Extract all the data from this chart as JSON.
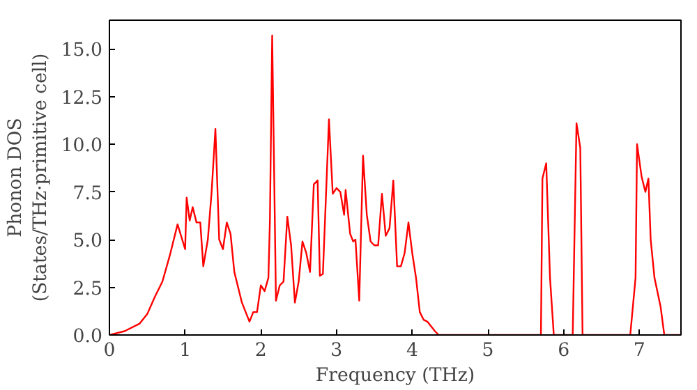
{
  "chart_data": {
    "type": "line",
    "xlabel": "Frequency (THz)",
    "ylabel": "Phonon DOS\n(States/THz·primitive cell)",
    "xlim": [
      0,
      7.55
    ],
    "ylim": [
      0,
      16.5
    ],
    "xticks": [
      0,
      1,
      2,
      3,
      4,
      5,
      6,
      7
    ],
    "yticks": [
      {
        "value": 0,
        "label": "0.0"
      },
      {
        "value": 2.5,
        "label": "2.5"
      },
      {
        "value": 5,
        "label": "5.0"
      },
      {
        "value": 7.5,
        "label": "7.5"
      },
      {
        "value": 10,
        "label": "10.0"
      },
      {
        "value": 12.5,
        "label": "12.5"
      },
      {
        "value": 15,
        "label": "15.0"
      }
    ],
    "grid": false,
    "series": [
      {
        "color": "#ff0000",
        "x": [
          0,
          0.2,
          0.4,
          0.5,
          0.6,
          0.7,
          0.8,
          0.9,
          1.0,
          1.02,
          1.06,
          1.1,
          1.15,
          1.2,
          1.24,
          1.3,
          1.35,
          1.4,
          1.45,
          1.5,
          1.55,
          1.6,
          1.65,
          1.75,
          1.85,
          1.9,
          1.95,
          2.0,
          2.05,
          2.1,
          2.12,
          2.15,
          2.2,
          2.25,
          2.3,
          2.35,
          2.4,
          2.45,
          2.5,
          2.55,
          2.6,
          2.65,
          2.7,
          2.75,
          2.78,
          2.82,
          2.9,
          2.95,
          3.0,
          3.05,
          3.1,
          3.12,
          3.18,
          3.22,
          3.25,
          3.3,
          3.35,
          3.4,
          3.45,
          3.5,
          3.55,
          3.6,
          3.65,
          3.7,
          3.75,
          3.8,
          3.85,
          3.9,
          3.95,
          4.0,
          4.05,
          4.1,
          4.15,
          4.2,
          4.3,
          4.35,
          5.7,
          5.72,
          5.77,
          5.82,
          5.87,
          6.12,
          6.17,
          6.22,
          6.25,
          6.88,
          6.95,
          6.97,
          7.03,
          7.08,
          7.12,
          7.15,
          7.2,
          7.28,
          7.33,
          7.55
        ],
        "values": [
          0,
          0.2,
          0.6,
          1.1,
          2.0,
          2.8,
          4.2,
          5.8,
          4.5,
          7.2,
          6.0,
          6.7,
          5.9,
          5.9,
          3.6,
          5.0,
          7.5,
          10.8,
          5.0,
          4.5,
          5.9,
          5.3,
          3.3,
          1.7,
          0.7,
          1.2,
          1.2,
          2.6,
          2.3,
          3.0,
          6.0,
          15.7,
          1.8,
          2.6,
          2.8,
          6.2,
          4.7,
          1.7,
          2.8,
          4.9,
          4.3,
          3.3,
          7.9,
          8.1,
          3.1,
          3.2,
          11.3,
          7.4,
          7.7,
          7.5,
          6.3,
          7.6,
          5.3,
          4.9,
          5.0,
          1.8,
          9.4,
          6.3,
          4.9,
          4.7,
          4.7,
          7.4,
          5.2,
          5.6,
          8.1,
          3.6,
          3.6,
          4.3,
          5.9,
          4.3,
          3.0,
          1.2,
          0.8,
          0.7,
          0.2,
          0,
          0,
          8.2,
          9.0,
          3.0,
          0,
          0,
          11.1,
          9.8,
          0,
          0,
          3.0,
          10.0,
          8.3,
          7.5,
          8.2,
          5.0,
          3.0,
          1.5,
          0,
          0
        ]
      }
    ]
  }
}
